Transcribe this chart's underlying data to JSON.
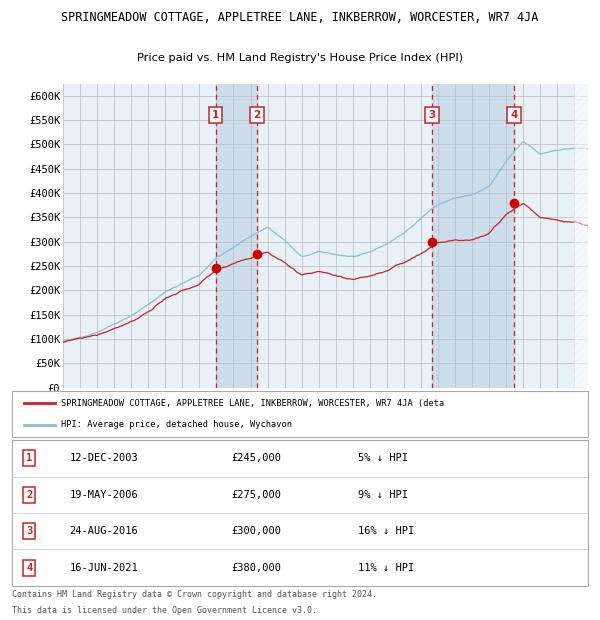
{
  "title1": "SPRINGMEADOW COTTAGE, APPLETREE LANE, INKBERROW, WORCESTER, WR7 4JA",
  "title2": "Price paid vs. HM Land Registry's House Price Index (HPI)",
  "ylabel_ticks": [
    "£0",
    "£50K",
    "£100K",
    "£150K",
    "£200K",
    "£250K",
    "£300K",
    "£350K",
    "£400K",
    "£450K",
    "£500K",
    "£550K",
    "£600K"
  ],
  "ytick_values": [
    0,
    50000,
    100000,
    150000,
    200000,
    250000,
    300000,
    350000,
    400000,
    450000,
    500000,
    550000,
    600000
  ],
  "ylim": [
    0,
    625000
  ],
  "xlim_start": 1995.0,
  "xlim_end": 2025.8,
  "hpi_color": "#8bbcda",
  "price_color": "#cc2222",
  "sale_dot_color": "#cc0000",
  "vline_color": "#cc2222",
  "bg_chart_color": "#e8f0f8",
  "bg_fill_color": "#c8daea",
  "grid_color": "#bbbbbb",
  "sales": [
    {
      "label": "1",
      "date_str": "12-DEC-2003",
      "year": 2003.95,
      "price": 245000,
      "pct": "5% ↓ HPI"
    },
    {
      "label": "2",
      "date_str": "19-MAY-2006",
      "year": 2006.38,
      "price": 275000,
      "pct": "9% ↓ HPI"
    },
    {
      "label": "3",
      "date_str": "24-AUG-2016",
      "year": 2016.65,
      "price": 300000,
      "pct": "16% ↓ HPI"
    },
    {
      "label": "4",
      "date_str": "16-JUN-2021",
      "year": 2021.46,
      "price": 380000,
      "pct": "11% ↓ HPI"
    }
  ],
  "legend_red_label": "SPRINGMEADOW COTTAGE, APPLETREE LANE, INKBERROW, WORCESTER, WR7 4JA (deta",
  "legend_blue_label": "HPI: Average price, detached house, Wychavon",
  "footer1": "Contains HM Land Registry data © Crown copyright and database right 2024.",
  "footer2": "This data is licensed under the Open Government Licence v3.0.",
  "box_color": "#cc2222",
  "box_text_color": "#cc2222",
  "hpi_base_points_x": [
    1995,
    1996,
    1997,
    1998,
    1999,
    2000,
    2001,
    2002,
    2003,
    2004,
    2005,
    2006,
    2007,
    2008,
    2009,
    2010,
    2011,
    2012,
    2013,
    2014,
    2015,
    2016,
    2017,
    2018,
    2019,
    2020,
    2021,
    2022,
    2023,
    2024,
    2025,
    2025.8
  ],
  "hpi_base_points_y": [
    93000,
    102000,
    115000,
    133000,
    152000,
    175000,
    200000,
    218000,
    235000,
    272000,
    292000,
    315000,
    335000,
    308000,
    272000,
    282000,
    276000,
    272000,
    278000,
    296000,
    318000,
    348000,
    378000,
    392000,
    398000,
    415000,
    465000,
    505000,
    478000,
    488000,
    492000,
    490000
  ]
}
